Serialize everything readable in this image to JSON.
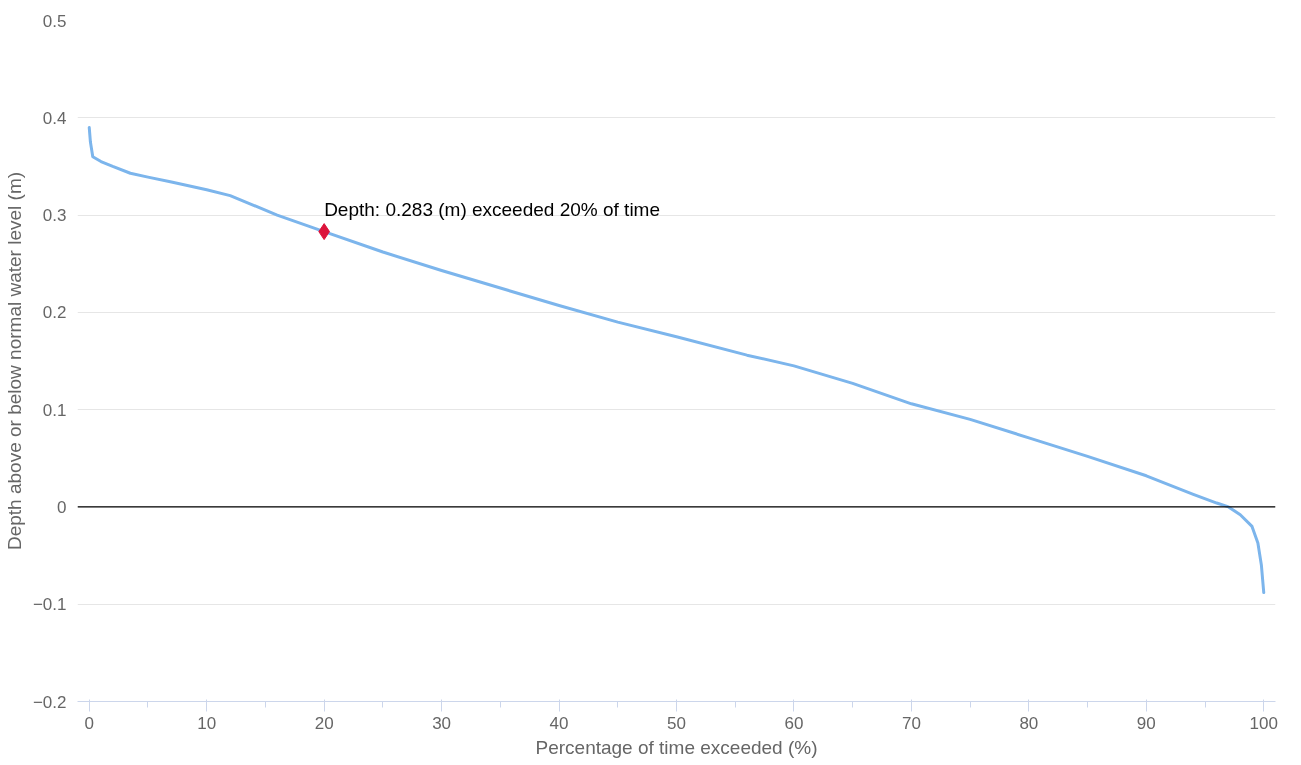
{
  "chart_data": {
    "type": "line",
    "xlabel": "Percentage of time exceeded (%)",
    "ylabel": "Depth above or below normal water level (m)",
    "x": [
      0,
      0.1,
      0.3,
      1,
      2,
      3.5,
      5,
      7,
      10,
      12,
      16,
      20,
      25,
      30,
      40,
      45,
      50,
      56,
      60,
      65,
      70,
      75,
      80,
      85,
      90,
      94,
      96,
      97,
      98,
      99,
      99.5,
      99.8,
      100
    ],
    "series": [
      {
        "color": "#7cb5ec",
        "values": [
          0.39,
          0.375,
          0.36,
          0.355,
          0.35,
          0.343,
          0.339,
          0.334,
          0.326,
          0.32,
          0.3,
          0.283,
          0.262,
          0.243,
          0.207,
          0.19,
          0.175,
          0.156,
          0.145,
          0.127,
          0.106,
          0.09,
          0.071,
          0.052,
          0.032,
          0.013,
          0.004,
          0.0,
          -0.008,
          -0.02,
          -0.037,
          -0.06,
          -0.088
        ]
      },
      {
        "type": "scatter",
        "color": "#dc143c",
        "marker": "diamond",
        "x": [
          20
        ],
        "values": [
          0.283
        ]
      }
    ],
    "annotations": [
      {
        "text": "Depth: 0.283 (m) exceeded 20% of time",
        "x": 20,
        "y": 0.283
      }
    ],
    "ref_lines": [
      {
        "axis": "y",
        "value": 0,
        "color": "#000000"
      }
    ],
    "xlim": [
      -1,
      101
    ],
    "ylim": [
      -0.2,
      0.5
    ],
    "xticks": [
      0,
      10,
      20,
      30,
      40,
      50,
      60,
      70,
      80,
      90,
      100
    ],
    "yticks": [
      -0.2,
      -0.1,
      0,
      0.1,
      0.2,
      0.3,
      0.4,
      0.5
    ],
    "grid": "y"
  }
}
